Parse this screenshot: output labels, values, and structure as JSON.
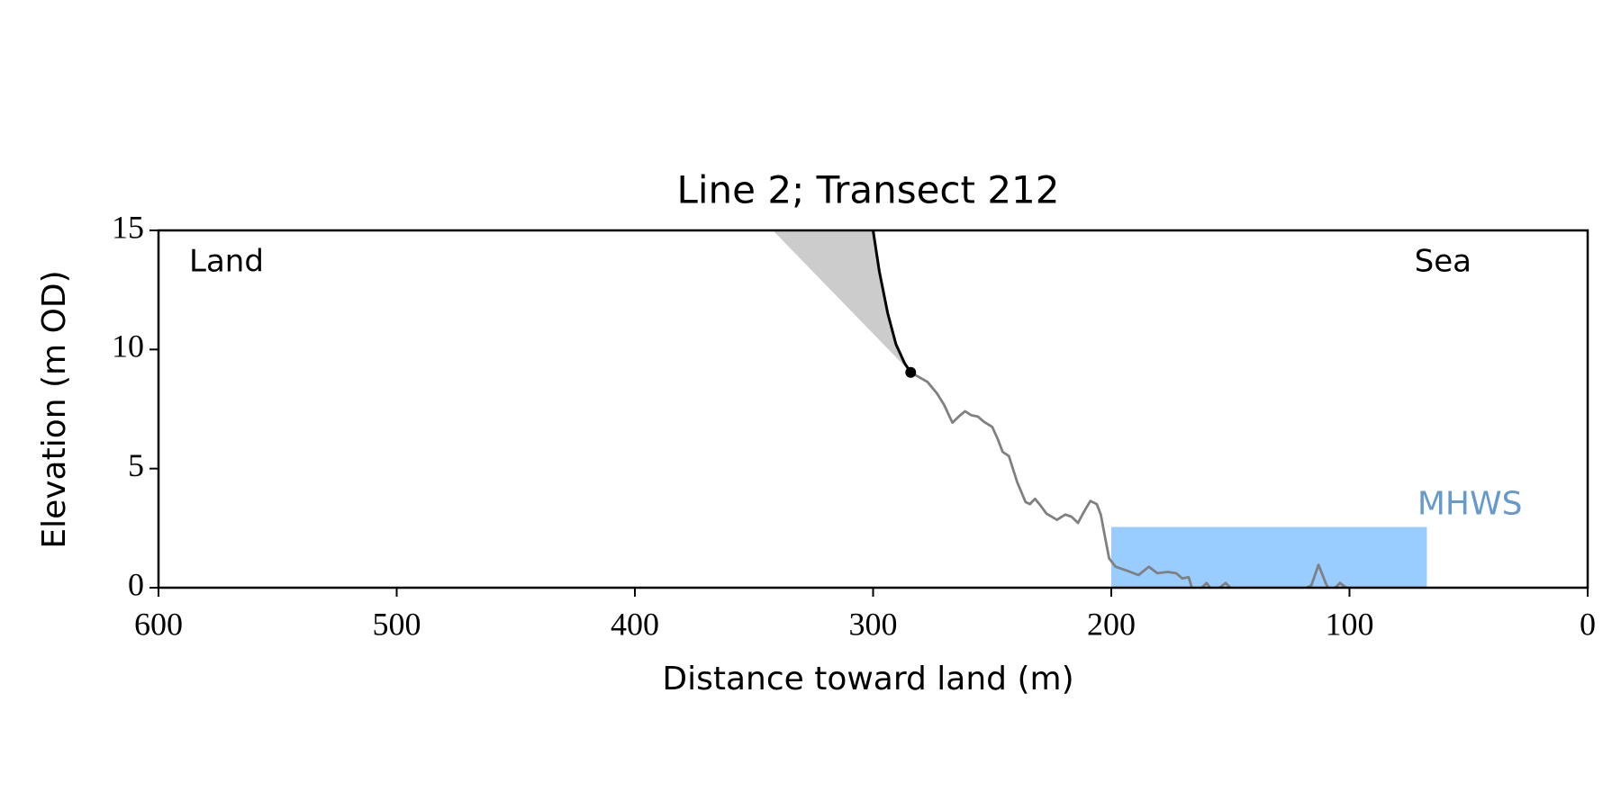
{
  "chart_data": {
    "type": "line",
    "title": "Line 2; Transect 212",
    "xlabel": "Distance toward land (m)",
    "ylabel": "Elevation (m OD)",
    "xlim": [
      600,
      0
    ],
    "ylim": [
      0,
      15
    ],
    "xticks": [
      600,
      500,
      400,
      300,
      200,
      100,
      0
    ],
    "yticks": [
      0,
      5,
      10,
      15
    ],
    "annotations": [
      "Land",
      "Sea"
    ],
    "profile": {
      "color": "#808080",
      "x": [
        284.2,
        277.2,
        273.2,
        270.2,
        266.7,
        264,
        261.4,
        258.8,
        256.1,
        253.5,
        250,
        247.8,
        245.6,
        243,
        239.5,
        236,
        234.2,
        232,
        229.8,
        227.2,
        222.8,
        219.3,
        216.7,
        214,
        211.4,
        208.8,
        206.1,
        204.4,
        202.6,
        200.9,
        198.2,
        193,
        188.6,
        184.2,
        180.7,
        176.3,
        172.8,
        170.2,
        167.5,
        166.2,
        164,
        160,
        157,
        152,
        148,
        120,
        116,
        113,
        110,
        108,
        104,
        100
      ],
      "values": [
        9.04,
        8.64,
        8.16,
        7.68,
        6.93,
        7.19,
        7.41,
        7.24,
        7.19,
        6.97,
        6.75,
        6.27,
        5.7,
        5.53,
        4.43,
        3.6,
        3.51,
        3.73,
        3.46,
        3.11,
        2.85,
        3.07,
        2.98,
        2.72,
        3.2,
        3.64,
        3.51,
        3.07,
        2.11,
        1.23,
        0.88,
        0.7,
        0.53,
        0.88,
        0.61,
        0.66,
        0.61,
        0.39,
        0.44,
        0,
        -0.2,
        0.2,
        -0.2,
        0.2,
        -0.2,
        -0.1,
        0.1,
        0.96,
        0.2,
        -0.2,
        0.2,
        -0.1
      ]
    },
    "cliff": {
      "color": "#000000",
      "x": [
        300,
        297.4,
        293.9,
        290.4,
        286.8,
        284.2
      ],
      "values": [
        15,
        13.29,
        11.54,
        10.22,
        9.43,
        9.04
      ]
    },
    "cliff_top": {
      "x": 284.2,
      "value": 9.04,
      "color": "#000000"
    },
    "shaded": {
      "color": "#cccccc",
      "x": [
        342.1,
        300,
        297.4,
        293.9,
        290.4,
        286.8,
        284.2
      ],
      "values": [
        15,
        15,
        13.29,
        11.54,
        10.22,
        9.43,
        9.04
      ]
    },
    "mhws": {
      "label": "MHWS",
      "x": [
        200,
        67.5
      ],
      "value": 2.55,
      "color": "#99ccff",
      "label_color": "#6699cc"
    }
  }
}
